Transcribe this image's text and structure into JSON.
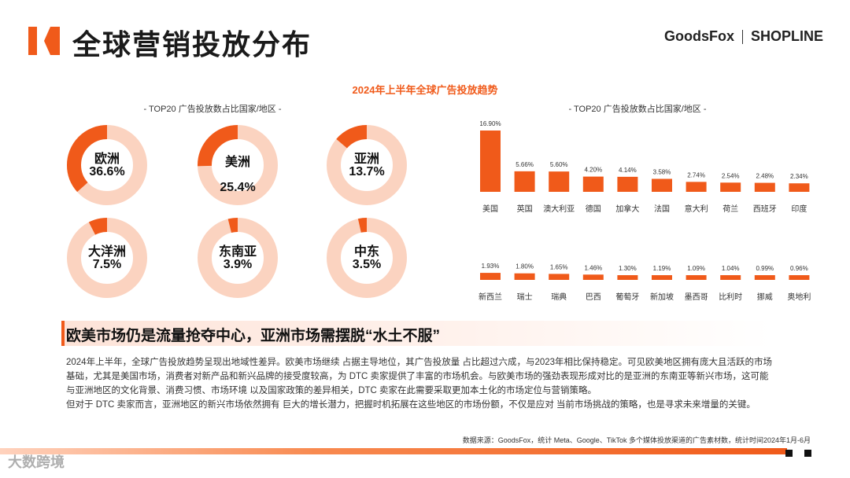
{
  "header": {
    "title": "全球营销投放分布",
    "brand_left": "GoodsFox",
    "brand_right": "SHOPLINE"
  },
  "chart_main_title": "2024年上半年全球广告投放趋势",
  "donut_subtitle": "- TOP20 广告投放数占比国家/地区 -",
  "bar_subtitle": "- TOP20 广告投放数占比国家/地区 -",
  "colors": {
    "accent": "#f05a1a",
    "track": "#fbd3c0"
  },
  "chart_data": [
    {
      "type": "pie",
      "title": "TOP20 广告投放数占比国家/地区",
      "categories": [
        "欧洲",
        "美洲",
        "亚洲",
        "大洋洲",
        "东南亚",
        "中东"
      ],
      "values": [
        36.6,
        25.4,
        13.7,
        7.5,
        3.9,
        3.5
      ],
      "labels": [
        "36.6%",
        "25.4%",
        "13.7%",
        "7.5%",
        "3.9%",
        "3.5%"
      ]
    },
    {
      "type": "bar",
      "title": "TOP20 广告投放数占比国家/地区",
      "categories": [
        "美国",
        "英国",
        "澳大利亚",
        "德国",
        "加拿大",
        "法国",
        "意大利",
        "荷兰",
        "西班牙",
        "印度",
        "新西兰",
        "瑞士",
        "瑞典",
        "巴西",
        "葡萄牙",
        "新加坡",
        "墨西哥",
        "比利时",
        "挪威",
        "奥地利"
      ],
      "values": [
        16.9,
        5.66,
        5.6,
        4.2,
        4.14,
        3.58,
        2.74,
        2.54,
        2.48,
        2.34,
        1.93,
        1.8,
        1.65,
        1.46,
        1.3,
        1.19,
        1.09,
        1.04,
        0.99,
        0.96
      ],
      "labels": [
        "16.90%",
        "5.66%",
        "5.60%",
        "4.20%",
        "4.14%",
        "3.58%",
        "2.74%",
        "2.54%",
        "2.48%",
        "2.34%",
        "1.93%",
        "1.80%",
        "1.65%",
        "1.46%",
        "1.30%",
        "1.19%",
        "1.09%",
        "1.04%",
        "0.99%",
        "0.96%"
      ],
      "ylim": [
        0,
        16.9
      ]
    }
  ],
  "headline": "欧美市场仍是流量抢夺中心，亚洲市场需摆脱“水土不服”",
  "body": [
    "2024年上半年，全球广告投放趋势呈现出地域性差异。欧美市场继续 占据主导地位，其广告投放量 占比超过六成，与2023年相比保持稳定。可见欧美地区拥有庞大且活跃的市场",
    "基础，尤其是美国市场，消费者对新产品和新兴品牌的接受度较高，为 DTC 卖家提供了丰富的市场机会。与欧美市场的强劲表现形成对比的是亚洲的东南亚等新兴市场，这可能",
    "与亚洲地区的文化背景、消费习惯、市场环境 以及国家政策的差异相关，DTC 卖家在此需要采取更加本土化的市场定位与营销策略。",
    "但对于 DTC 卖家而言，亚洲地区的新兴市场依然拥有 巨大的增长潜力，把握时机拓展在这些地区的市场份额，不仅是应对 当前市场挑战的策略，也是寻求未来增量的关键。"
  ],
  "source": "数据来源：GoodsFox，统计 Meta、Google、TikTok 多个媒体投放渠道的广告素材数，统计时间2024年1月-6月",
  "watermark": "大数跨境"
}
